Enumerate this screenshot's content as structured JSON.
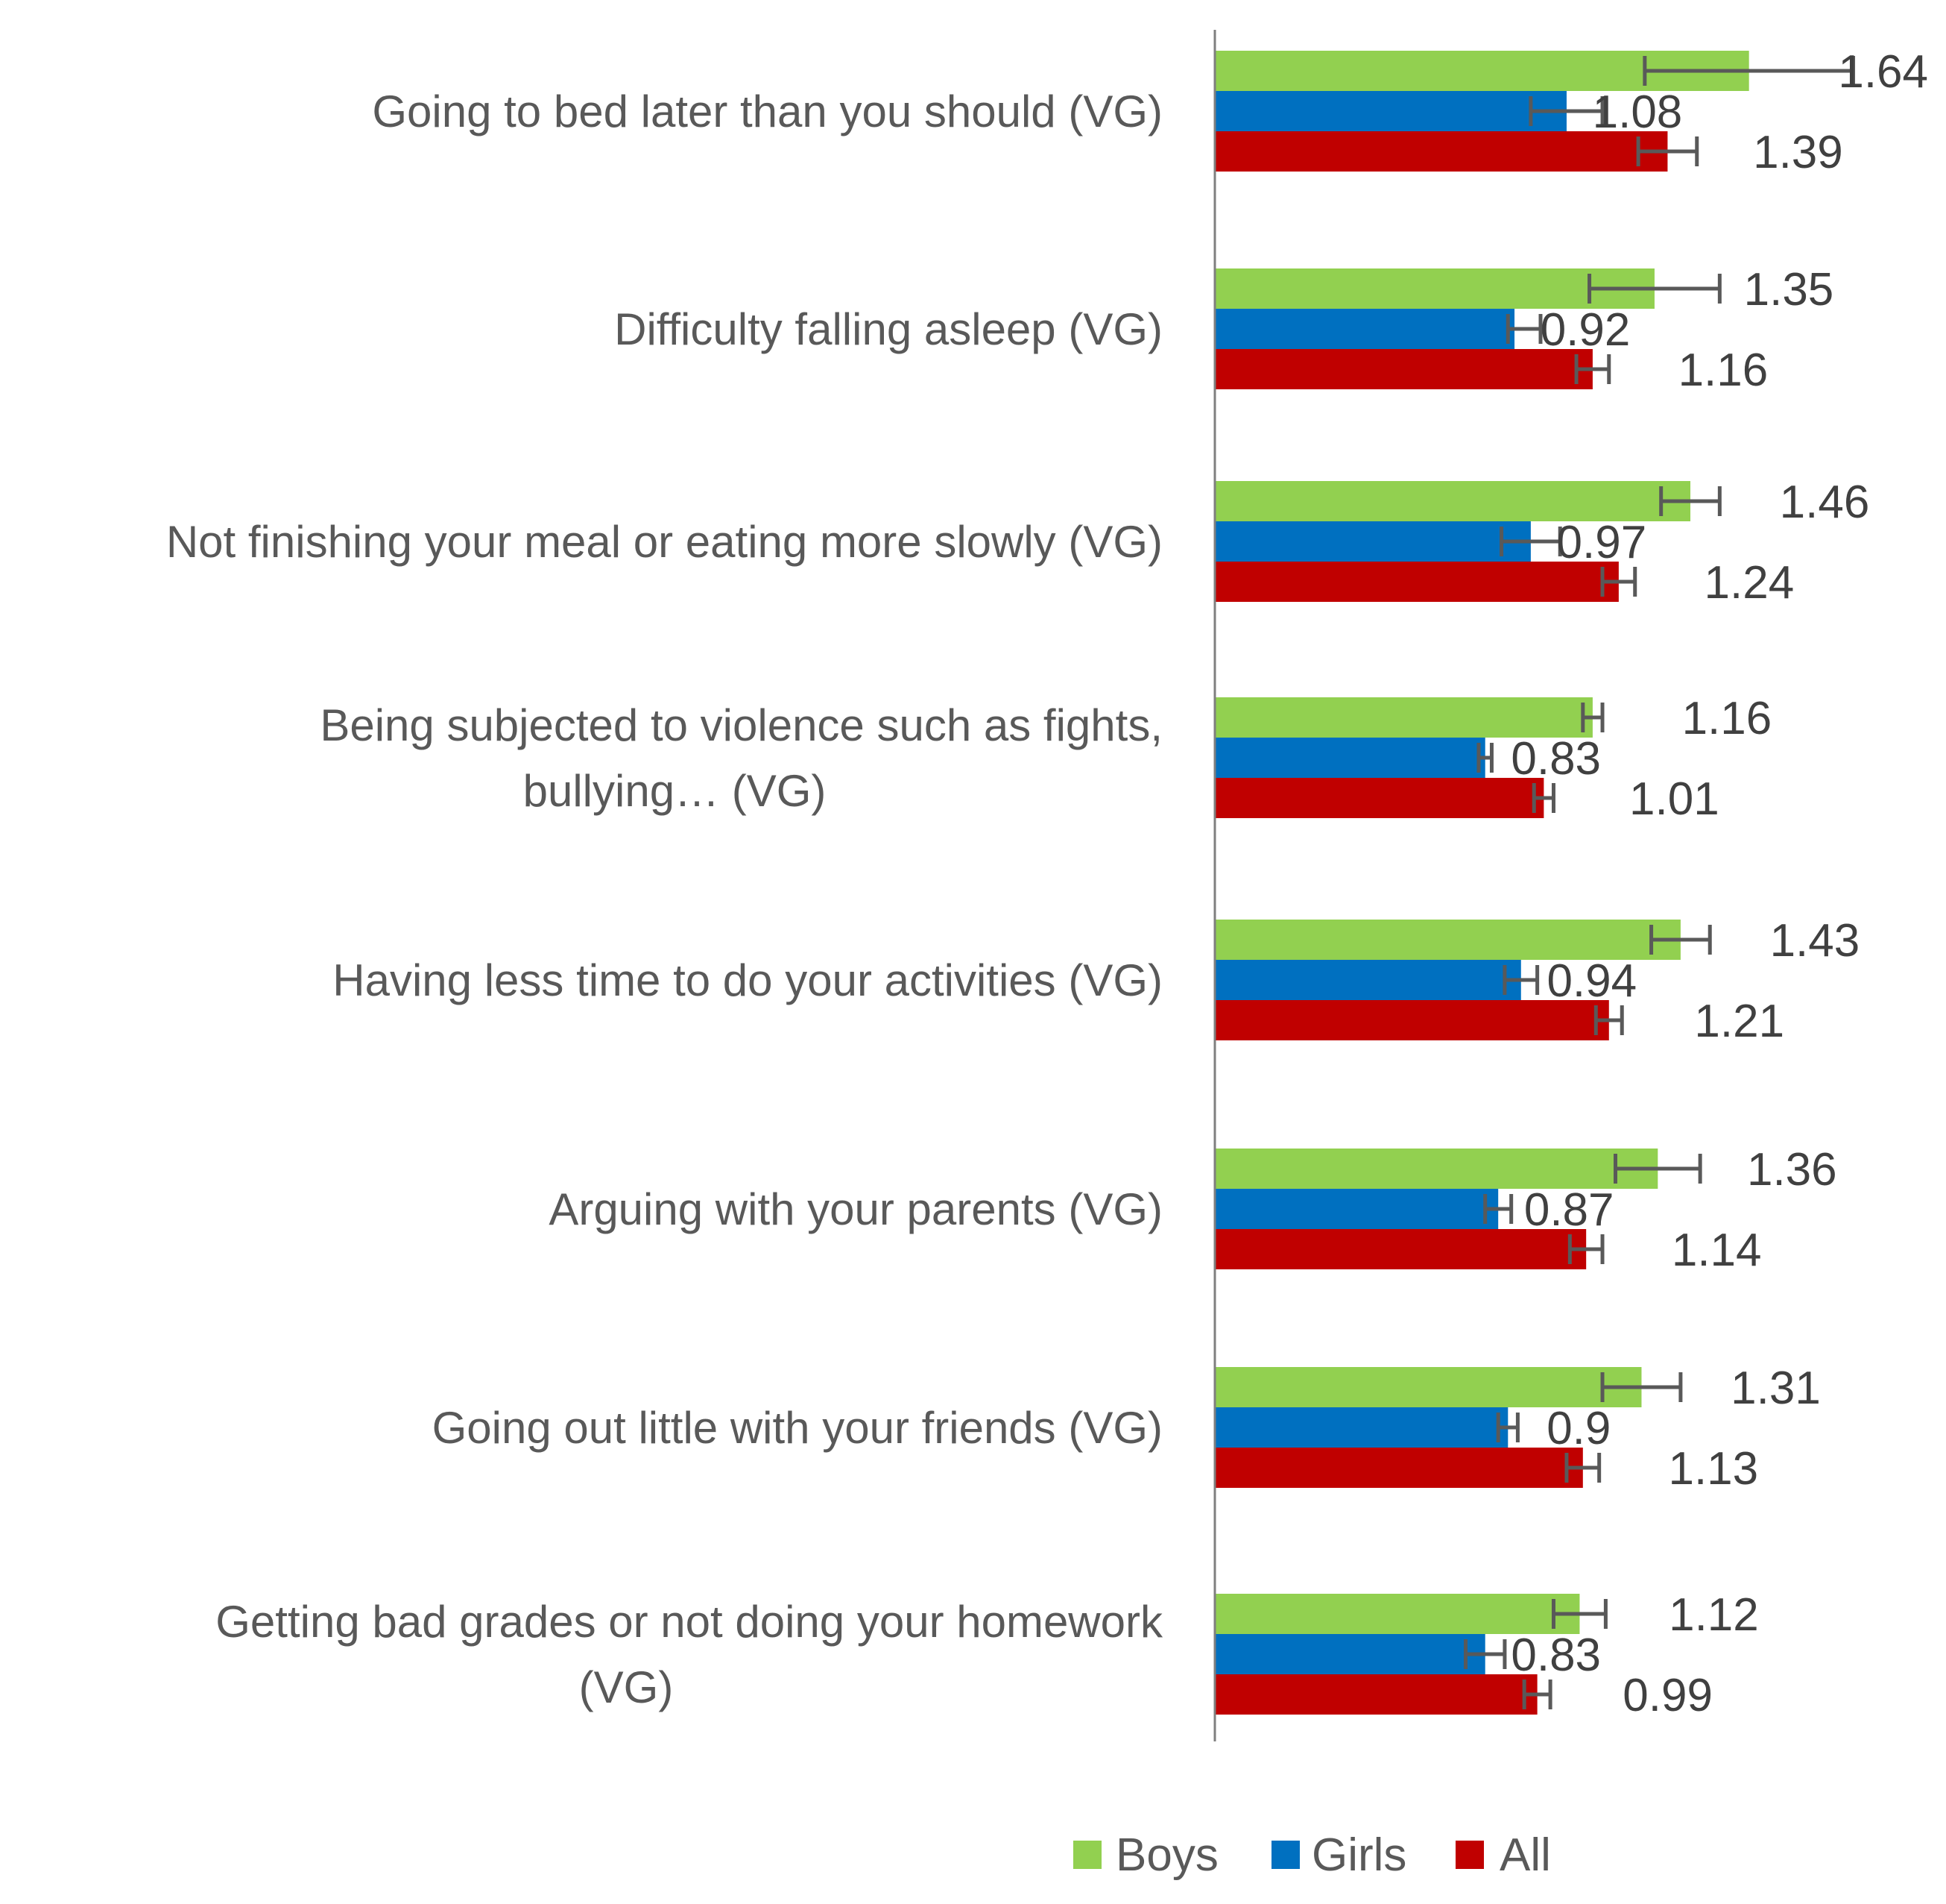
{
  "chart_data": {
    "type": "bar",
    "orientation": "horizontal",
    "categories": [
      [
        "Going to bed later than you should (VG)"
      ],
      [
        "Difficulty falling asleep (VG)"
      ],
      [
        "Not finishing your meal or eating more slowly (VG)"
      ],
      [
        "Being subjected to violence such as fights,",
        "bullying… (VG)"
      ],
      [
        "Having less time to do your activities (VG)"
      ],
      [
        "Arguing with your parents (VG)"
      ],
      [
        "Going out little with your friends (VG)"
      ],
      [
        "Getting bad grades or not doing your homework",
        "(VG)"
      ]
    ],
    "series": [
      {
        "name": "Boys",
        "color": "#92d050",
        "values": [
          1.64,
          1.35,
          1.46,
          1.16,
          1.43,
          1.36,
          1.31,
          1.12
        ],
        "labels": [
          "1.64",
          "1.35",
          "1.46",
          "1.16",
          "1.43",
          "1.36",
          "1.31",
          "1.12"
        ],
        "err_low": [
          1.32,
          1.15,
          1.37,
          1.13,
          1.34,
          1.23,
          1.19,
          1.04
        ],
        "err_high": [
          1.96,
          1.55,
          1.55,
          1.19,
          1.52,
          1.49,
          1.43,
          1.2
        ]
      },
      {
        "name": "Girls",
        "color": "#0070c0",
        "values": [
          1.08,
          0.92,
          0.97,
          0.83,
          0.94,
          0.87,
          0.9,
          0.83
        ],
        "labels": [
          "1.08",
          "0.92",
          "0.97",
          "0.83",
          "0.94",
          "0.87",
          "0.9",
          "0.83"
        ],
        "err_low": [
          0.97,
          0.9,
          0.88,
          0.81,
          0.89,
          0.83,
          0.87,
          0.77
        ],
        "err_high": [
          1.19,
          1.0,
          1.06,
          0.85,
          0.99,
          0.91,
          0.93,
          0.89
        ]
      },
      {
        "name": "All",
        "color": "#c00000",
        "values": [
          1.39,
          1.16,
          1.24,
          1.01,
          1.21,
          1.14,
          1.13,
          0.99
        ],
        "labels": [
          "1.39",
          "1.16",
          "1.24",
          "1.01",
          "1.21",
          "1.14",
          "1.13",
          "0.99"
        ],
        "err_low": [
          1.3,
          1.11,
          1.19,
          0.98,
          1.17,
          1.09,
          1.08,
          0.95
        ],
        "err_high": [
          1.48,
          1.21,
          1.29,
          1.04,
          1.25,
          1.19,
          1.18,
          1.03
        ]
      }
    ],
    "title": "",
    "xlabel": "",
    "ylabel": "",
    "xlim": [
      0,
      1.75
    ],
    "grid": false,
    "legend_position": "bottom"
  }
}
